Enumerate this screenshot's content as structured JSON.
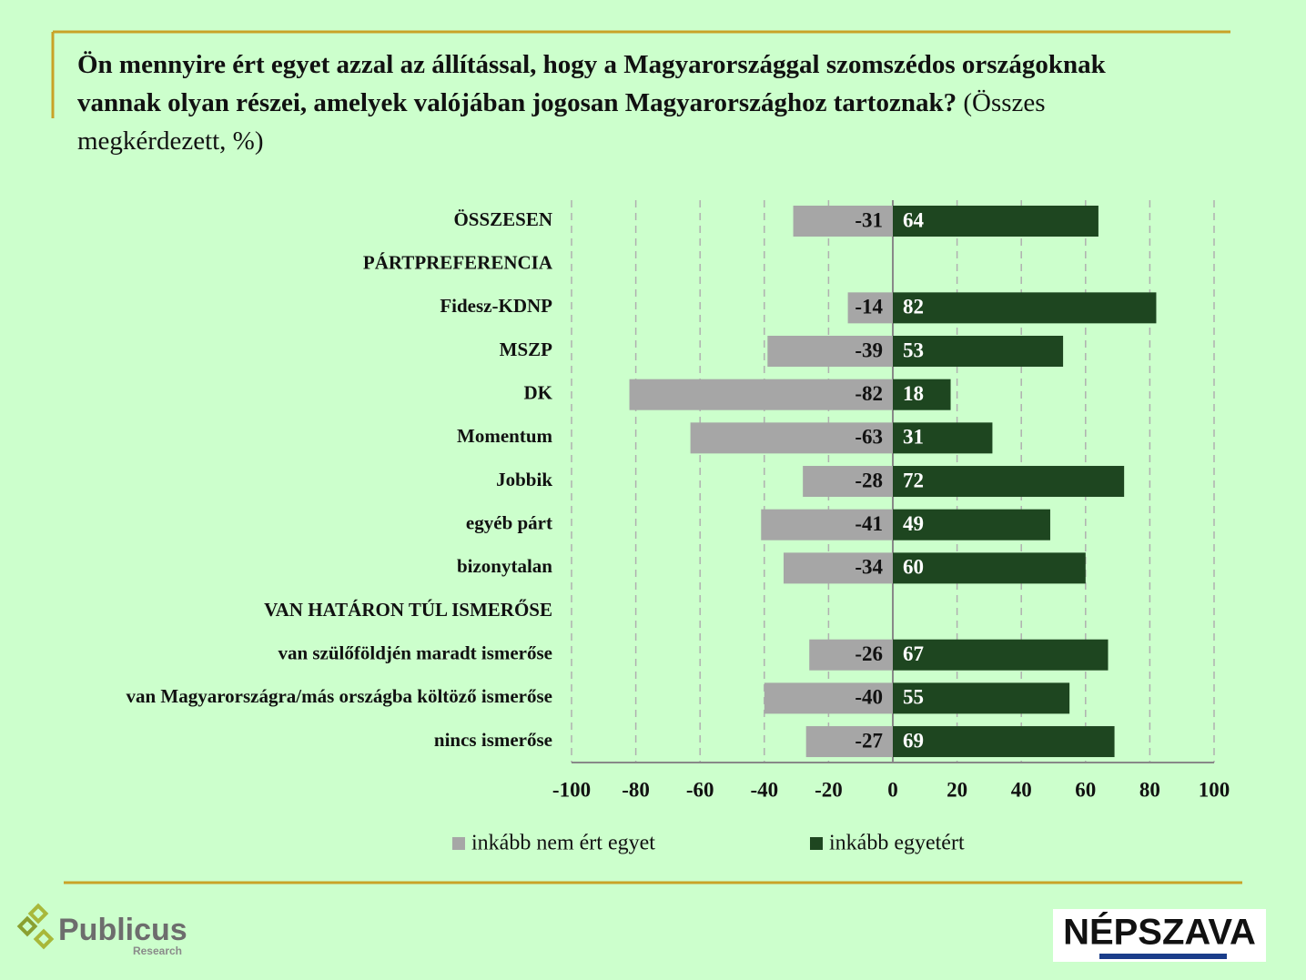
{
  "chart_data": {
    "type": "diverging-bar",
    "title": "Ön mennyire ért egyet azzal az állítással, hogy a Magyarországgal szomszédos országoknak vannak olyan részei, amelyek valójában jogosan Magyarországhoz tartoznak?",
    "subtitle": "(Összes megkérdezett, %)",
    "categories": [
      "ÖSSZESEN",
      "PÁRTPREFERENCIA",
      "Fidesz-KDNP",
      "MSZP",
      "DK",
      "Momentum",
      "Jobbik",
      "egyéb párt",
      "bizonytalan",
      "VAN HATÁRON TÚL ISMERŐSE",
      "van szülőföldjén maradt ismerőse",
      "van Magyarországra/más országba költöző ismerőse",
      "nincs ismerőse"
    ],
    "series": [
      {
        "name": "inkább nem ért egyet",
        "color": "#a6a6a6",
        "label_color": "#111111",
        "values": [
          -31,
          null,
          -14,
          -39,
          -82,
          -63,
          -28,
          -41,
          -34,
          null,
          -26,
          -40,
          -27
        ]
      },
      {
        "name": "inkább egyetért",
        "color": "#1e4620",
        "label_color": "#ffffff",
        "values": [
          64,
          null,
          82,
          53,
          18,
          31,
          72,
          49,
          60,
          null,
          67,
          55,
          69
        ]
      }
    ],
    "xlim": [
      -100,
      100
    ],
    "xticks": [
      -100,
      -80,
      -60,
      -40,
      -20,
      0,
      20,
      40,
      60,
      80,
      100
    ],
    "grid": true
  },
  "logos": {
    "left": "Publicus",
    "left_sub": "Research",
    "right": "NÉPSZAVA"
  }
}
